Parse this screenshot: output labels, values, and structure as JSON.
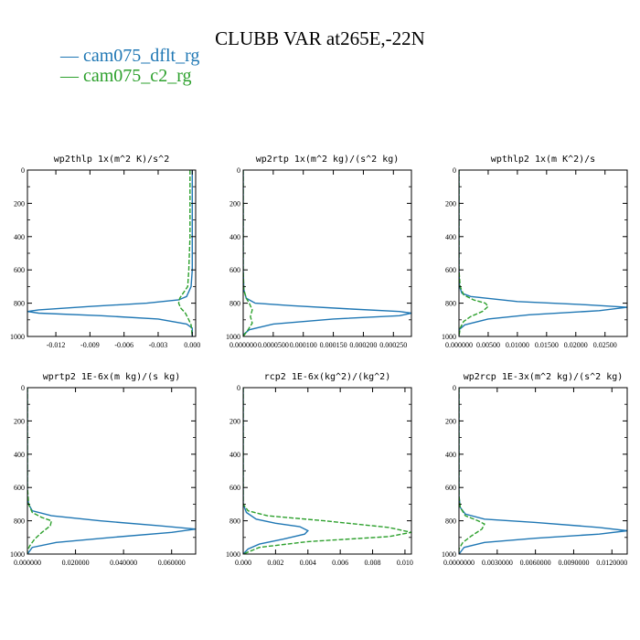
{
  "title": "CLUBB VAR at265E,-22N",
  "legend": [
    {
      "label": "cam075_dflt_rg",
      "color": "#1f77b4",
      "dash": "solid"
    },
    {
      "label": "cam075_c2_rg",
      "color": "#2ca02c",
      "dash": "dashed"
    }
  ],
  "chart_data": [
    {
      "type": "line",
      "title": "wp2thlp  1x(m^2 K)/s^2",
      "xlim": [
        -0.0145,
        0.0003
      ],
      "ylim": [
        1000,
        0
      ],
      "xticks": [
        -0.012,
        -0.009,
        -0.006,
        -0.003,
        0.0
      ],
      "xtick_labels": [
        "-0.012",
        "-0.009",
        "-0.006",
        "-0.003",
        "0.000"
      ],
      "yticks": [
        0,
        200,
        400,
        600,
        800,
        1000
      ],
      "ytick_labels": [
        "0",
        "200",
        "400",
        "600",
        "800",
        "1000"
      ],
      "series": [
        {
          "name": "cam075_dflt_rg",
          "points": [
            [
              0,
              0
            ],
            [
              0,
              600
            ],
            [
              -0.0001,
              700
            ],
            [
              -0.0005,
              760
            ],
            [
              -0.0012,
              780
            ],
            [
              -0.004,
              800
            ],
            [
              -0.009,
              820
            ],
            [
              -0.0135,
              840
            ],
            [
              -0.0145,
              850
            ],
            [
              -0.0135,
              860
            ],
            [
              -0.008,
              875
            ],
            [
              -0.003,
              895
            ],
            [
              -0.0005,
              925
            ],
            [
              0,
              950
            ],
            [
              0,
              1000
            ]
          ]
        },
        {
          "name": "cam075_c2_rg",
          "points": [
            [
              -0.0002,
              0
            ],
            [
              -0.0002,
              400
            ],
            [
              -0.0003,
              600
            ],
            [
              -0.0004,
              700
            ],
            [
              -0.0008,
              740
            ],
            [
              -0.0011,
              770
            ],
            [
              -0.0012,
              800
            ],
            [
              -0.001,
              830
            ],
            [
              -0.0006,
              860
            ],
            [
              -0.0003,
              900
            ],
            [
              -0.0001,
              930
            ],
            [
              0,
              1000
            ]
          ]
        }
      ]
    },
    {
      "type": "line",
      "title": "wp2rtp  1x(m^2 kg)/(s^2 kg)",
      "xlim": [
        0,
        0.00028
      ],
      "ylim": [
        1000,
        0
      ],
      "xticks": [
        0,
        5e-05,
        0.0001,
        0.00015,
        0.0002,
        0.00025
      ],
      "xtick_labels": [
        "0.000000",
        "0.0000500",
        "0.000100",
        "0.000150",
        "0.000200",
        "0.000250"
      ],
      "yticks": [
        0,
        200,
        400,
        600,
        800,
        1000
      ],
      "ytick_labels": [
        "0",
        "200",
        "400",
        "600",
        "800",
        "1000"
      ],
      "series": [
        {
          "name": "cam075_dflt_rg",
          "points": [
            [
              0,
              0
            ],
            [
              0,
              600
            ],
            [
              1e-06,
              720
            ],
            [
              5e-06,
              770
            ],
            [
              2e-05,
              800
            ],
            [
              8e-05,
              815
            ],
            [
              0.00018,
              835
            ],
            [
              0.00026,
              850
            ],
            [
              0.00028,
              860
            ],
            [
              0.00026,
              875
            ],
            [
              0.00015,
              895
            ],
            [
              5e-05,
              925
            ],
            [
              1e-05,
              960
            ],
            [
              0,
              990
            ],
            [
              0,
              1000
            ]
          ]
        },
        {
          "name": "cam075_c2_rg",
          "points": [
            [
              0,
              0
            ],
            [
              0,
              600
            ],
            [
              1e-06,
              720
            ],
            [
              5e-06,
              770
            ],
            [
              1e-05,
              800
            ],
            [
              1.5e-05,
              840
            ],
            [
              1.2e-05,
              880
            ],
            [
              1.5e-05,
              920
            ],
            [
              8e-06,
              960
            ],
            [
              2e-06,
              990
            ],
            [
              0,
              1000
            ]
          ]
        }
      ]
    },
    {
      "type": "line",
      "title": "wpthlp2  1x(m K^2)/s",
      "xlim": [
        0,
        0.0288
      ],
      "ylim": [
        1000,
        0
      ],
      "xticks": [
        0,
        0.005,
        0.01,
        0.015,
        0.02,
        0.025
      ],
      "xtick_labels": [
        "0.000000",
        "0.00500",
        "0.01000",
        "0.01500",
        "0.02000",
        "0.02500"
      ],
      "yticks": [
        0,
        200,
        400,
        600,
        800,
        1000
      ],
      "ytick_labels": [
        "0",
        "200",
        "400",
        "600",
        "800",
        "1000"
      ],
      "series": [
        {
          "name": "cam075_dflt_rg",
          "points": [
            [
              0,
              0
            ],
            [
              0,
              600
            ],
            [
              0.0001,
              700
            ],
            [
              0.0005,
              740
            ],
            [
              0.002,
              760
            ],
            [
              0.01,
              790
            ],
            [
              0.022,
              810
            ],
            [
              0.0288,
              825
            ],
            [
              0.024,
              845
            ],
            [
              0.012,
              870
            ],
            [
              0.005,
              895
            ],
            [
              0.001,
              930
            ],
            [
              0,
              960
            ],
            [
              0,
              1000
            ]
          ]
        },
        {
          "name": "cam075_c2_rg",
          "points": [
            [
              0,
              0
            ],
            [
              0,
              600
            ],
            [
              0.0002,
              700
            ],
            [
              0.0008,
              750
            ],
            [
              0.0025,
              780
            ],
            [
              0.0045,
              800
            ],
            [
              0.005,
              820
            ],
            [
              0.004,
              850
            ],
            [
              0.002,
              880
            ],
            [
              0.0008,
              910
            ],
            [
              0.0002,
              950
            ],
            [
              0,
              1000
            ]
          ]
        }
      ]
    },
    {
      "type": "line",
      "title": "wprtp2  1E-6x(m kg)/(s kg)",
      "xlim": [
        0,
        0.07
      ],
      "ylim": [
        1000,
        0
      ],
      "xticks": [
        0,
        0.02,
        0.04,
        0.06
      ],
      "xtick_labels": [
        "0.000000",
        "0.020000",
        "0.040000",
        "0.060000"
      ],
      "yticks": [
        0,
        200,
        400,
        600,
        800,
        1000
      ],
      "ytick_labels": [
        "0",
        "200",
        "400",
        "600",
        "800",
        "1000"
      ],
      "series": [
        {
          "name": "cam075_dflt_rg",
          "points": [
            [
              0,
              0
            ],
            [
              0,
              650
            ],
            [
              0.0005,
              700
            ],
            [
              0.002,
              740
            ],
            [
              0.01,
              770
            ],
            [
              0.03,
              800
            ],
            [
              0.055,
              830
            ],
            [
              0.07,
              850
            ],
            [
              0.06,
              870
            ],
            [
              0.035,
              900
            ],
            [
              0.012,
              930
            ],
            [
              0.002,
              960
            ],
            [
              0,
              1000
            ]
          ]
        },
        {
          "name": "cam075_c2_rg",
          "points": [
            [
              0,
              0
            ],
            [
              0,
              600
            ],
            [
              0.0005,
              700
            ],
            [
              0.002,
              750
            ],
            [
              0.006,
              780
            ],
            [
              0.01,
              800
            ],
            [
              0.0095,
              830
            ],
            [
              0.006,
              870
            ],
            [
              0.003,
              910
            ],
            [
              0.001,
              950
            ],
            [
              0,
              980
            ],
            [
              0,
              1000
            ]
          ]
        }
      ]
    },
    {
      "type": "line",
      "title": "rcp2  1E-6x(kg^2)/(kg^2)",
      "xlim": [
        0,
        0.0104
      ],
      "ylim": [
        1000,
        0
      ],
      "xticks": [
        0,
        0.002,
        0.004,
        0.006,
        0.008,
        0.01
      ],
      "xtick_labels": [
        "0.000",
        "0.002",
        "0.004",
        "0.006",
        "0.008",
        "0.010"
      ],
      "yticks": [
        0,
        200,
        400,
        600,
        800,
        1000
      ],
      "ytick_labels": [
        "0",
        "200",
        "400",
        "600",
        "800",
        "1000"
      ],
      "series": [
        {
          "name": "cam075_dflt_rg",
          "points": [
            [
              0,
              0
            ],
            [
              0,
              700
            ],
            [
              0.0002,
              750
            ],
            [
              0.0008,
              790
            ],
            [
              0.002,
              815
            ],
            [
              0.0035,
              835
            ],
            [
              0.004,
              860
            ],
            [
              0.0038,
              880
            ],
            [
              0.0025,
              910
            ],
            [
              0.001,
              940
            ],
            [
              0.0003,
              970
            ],
            [
              0,
              1000
            ]
          ]
        },
        {
          "name": "cam075_c2_rg",
          "points": [
            [
              0,
              0
            ],
            [
              0,
              700
            ],
            [
              0.0003,
              740
            ],
            [
              0.0015,
              770
            ],
            [
              0.005,
              800
            ],
            [
              0.009,
              840
            ],
            [
              0.0104,
              870
            ],
            [
              0.009,
              895
            ],
            [
              0.004,
              925
            ],
            [
              0.001,
              960
            ],
            [
              0,
              1000
            ]
          ]
        }
      ]
    },
    {
      "type": "line",
      "title": "wp2rcp  1E-3x(m^2 kg)/(s^2 kg)",
      "xlim": [
        0,
        0.0132
      ],
      "ylim": [
        1000,
        0
      ],
      "xticks": [
        0,
        0.003,
        0.006,
        0.009,
        0.012
      ],
      "xtick_labels": [
        "0.0000000",
        "0.0030000",
        "0.0060000",
        "0.0090000",
        "0.0120000"
      ],
      "yticks": [
        0,
        200,
        400,
        600,
        800,
        1000
      ],
      "ytick_labels": [
        "0",
        "200",
        "400",
        "600",
        "800",
        "1000"
      ],
      "series": [
        {
          "name": "cam075_dflt_rg",
          "points": [
            [
              0,
              0
            ],
            [
              0,
              650
            ],
            [
              0.0001,
              720
            ],
            [
              0.0005,
              760
            ],
            [
              0.002,
              790
            ],
            [
              0.006,
              810
            ],
            [
              0.011,
              840
            ],
            [
              0.0132,
              860
            ],
            [
              0.011,
              880
            ],
            [
              0.006,
              905
            ],
            [
              0.002,
              930
            ],
            [
              0.0004,
              960
            ],
            [
              0,
              1000
            ]
          ]
        },
        {
          "name": "cam075_c2_rg",
          "points": [
            [
              0,
              0
            ],
            [
              0,
              650
            ],
            [
              0.0001,
              720
            ],
            [
              0.0005,
              770
            ],
            [
              0.0015,
              800
            ],
            [
              0.002,
              820
            ],
            [
              0.0018,
              850
            ],
            [
              0.001,
              890
            ],
            [
              0.0003,
              930
            ],
            [
              0,
              970
            ],
            [
              0,
              1000
            ]
          ]
        }
      ]
    }
  ]
}
